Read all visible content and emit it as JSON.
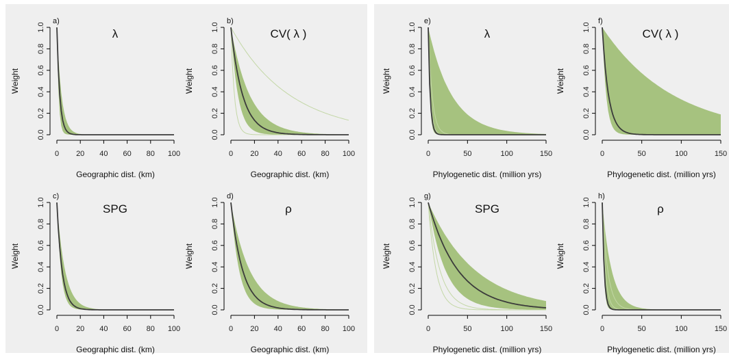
{
  "colors": {
    "background": "#efefef",
    "band": "#8db35a",
    "thin": "#c3d7a6",
    "median": "#3b3b3b"
  },
  "chart_data": [
    {
      "panel": "a",
      "label": "a)",
      "title": "λ",
      "type": "line",
      "xlabel": "Geographic dist. (km)",
      "ylabel": "Weight",
      "xlim": [
        0,
        100
      ],
      "ylim": [
        0,
        1
      ],
      "xticks": [
        0,
        20,
        40,
        60,
        80,
        100
      ],
      "yticks": [
        0.0,
        0.2,
        0.4,
        0.6,
        0.8,
        1.0
      ],
      "ytick_labels": [
        "0.0",
        "0.2",
        "0.4",
        "0.6",
        "0.8",
        "1.0"
      ],
      "median_decay": 2.5,
      "band_decay": [
        1.5,
        4
      ],
      "outlier_decays": [],
      "grid": false
    },
    {
      "panel": "b",
      "label": "b)",
      "title": "CV( λ )",
      "type": "line",
      "xlabel": "Geographic dist. (km)",
      "ylabel": "Weight",
      "xlim": [
        0,
        100
      ],
      "ylim": [
        0,
        1
      ],
      "xticks": [
        0,
        20,
        40,
        60,
        80,
        100
      ],
      "yticks": [
        0.0,
        0.2,
        0.4,
        0.6,
        0.8,
        1.0
      ],
      "ytick_labels": [
        "0.0",
        "0.2",
        "0.4",
        "0.6",
        "0.8",
        "1.0"
      ],
      "median_decay": 10,
      "band_decay": [
        6,
        16
      ],
      "outlier_decays": [
        3,
        50
      ],
      "grid": false
    },
    {
      "panel": "c",
      "label": "c)",
      "title": "SPG",
      "type": "line",
      "xlabel": "Geographic dist. (km)",
      "ylabel": "Weight",
      "xlim": [
        0,
        100
      ],
      "ylim": [
        0,
        1
      ],
      "xticks": [
        0,
        20,
        40,
        60,
        80,
        100
      ],
      "yticks": [
        0.0,
        0.2,
        0.4,
        0.6,
        0.8,
        1.0
      ],
      "ytick_labels": [
        "0.0",
        "0.2",
        "0.4",
        "0.6",
        "0.8",
        "1.0"
      ],
      "median_decay": 4.5,
      "band_decay": [
        3.5,
        7
      ],
      "outlier_decays": [],
      "grid": false
    },
    {
      "panel": "d",
      "label": "d)",
      "title": "ρ",
      "type": "line",
      "xlabel": "Geographic dist. (km)",
      "ylabel": "Weight",
      "xlim": [
        0,
        100
      ],
      "ylim": [
        0,
        1
      ],
      "xticks": [
        0,
        20,
        40,
        60,
        80,
        100
      ],
      "yticks": [
        0.0,
        0.2,
        0.4,
        0.6,
        0.8,
        1.0
      ],
      "ytick_labels": [
        "0.0",
        "0.2",
        "0.4",
        "0.6",
        "0.8",
        "1.0"
      ],
      "median_decay": 10,
      "band_decay": [
        7,
        16
      ],
      "outlier_decays": [],
      "grid": false
    },
    {
      "panel": "e",
      "label": "e)",
      "title": "λ",
      "type": "line",
      "xlabel": "Phylogenetic dist. (million yrs)",
      "ylabel": "Weight",
      "xlim": [
        0,
        150
      ],
      "ylim": [
        0,
        1
      ],
      "xticks": [
        0,
        50,
        100,
        150
      ],
      "yticks": [
        0.0,
        0.2,
        0.4,
        0.6,
        0.8,
        1.0
      ],
      "ytick_labels": [
        "0.0",
        "0.2",
        "0.4",
        "0.6",
        "0.8",
        "1.0"
      ],
      "median_decay": 2.5,
      "band_decay": [
        2,
        30
      ],
      "outlier_decays": [
        3,
        5
      ],
      "grid": false
    },
    {
      "panel": "f",
      "label": "f)",
      "title": "CV( λ )",
      "type": "line",
      "xlabel": "Phylogenetic dist. (million yrs)",
      "ylabel": "Weight",
      "xlim": [
        0,
        150
      ],
      "ylim": [
        0,
        1
      ],
      "xticks": [
        0,
        50,
        100,
        150
      ],
      "yticks": [
        0.0,
        0.2,
        0.4,
        0.6,
        0.8,
        1.0
      ],
      "ytick_labels": [
        "0.0",
        "0.2",
        "0.4",
        "0.6",
        "0.8",
        "1.0"
      ],
      "median_decay": 8,
      "band_decay": [
        5,
        90
      ],
      "outlier_decays": [],
      "grid": false
    },
    {
      "panel": "g",
      "label": "g)",
      "title": "SPG",
      "type": "line",
      "xlabel": "Phylogenetic dist. (million yrs)",
      "ylabel": "Weight",
      "xlim": [
        0,
        150
      ],
      "ylim": [
        0,
        1
      ],
      "xticks": [
        0,
        50,
        100,
        150
      ],
      "yticks": [
        0.0,
        0.2,
        0.4,
        0.6,
        0.8,
        1.0
      ],
      "ytick_labels": [
        "0.0",
        "0.2",
        "0.4",
        "0.6",
        "0.8",
        "1.0"
      ],
      "median_decay": 38,
      "band_decay": [
        22,
        60
      ],
      "outlier_decays": [
        10,
        15
      ],
      "grid": false
    },
    {
      "panel": "h",
      "label": "h)",
      "title": "ρ",
      "type": "line",
      "xlabel": "Phylogenetic dist. (million yrs)",
      "ylabel": "Weight",
      "xlim": [
        0,
        150
      ],
      "ylim": [
        0,
        1
      ],
      "xticks": [
        0,
        50,
        100,
        150
      ],
      "yticks": [
        0.0,
        0.2,
        0.4,
        0.6,
        0.8,
        1.0
      ],
      "ytick_labels": [
        "0.0",
        "0.2",
        "0.4",
        "0.6",
        "0.8",
        "1.0"
      ],
      "median_decay": 2.5,
      "band_decay": [
        2,
        12
      ],
      "outlier_decays": [
        4,
        7
      ],
      "grid": false
    }
  ]
}
